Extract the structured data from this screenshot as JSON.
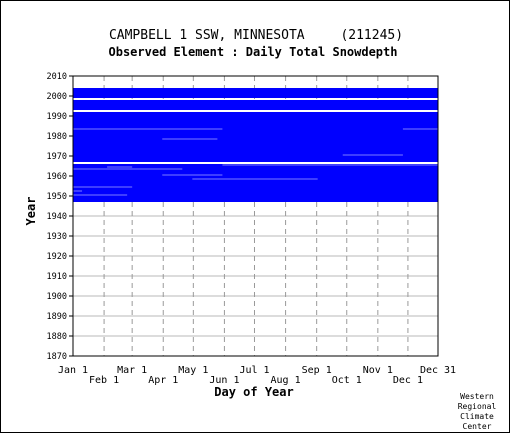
{
  "chart_data": {
    "type": "heatmap",
    "title": "CAMPBELL 1 SSW, MINNESOTA",
    "station_id": "(211245)",
    "subtitle": "Observed Element : Daily Total Snowdepth",
    "xlabel": "Day of Year",
    "ylabel": "Year",
    "x_ticks_upper": [
      "Jan 1",
      "Mar 1",
      "May 1",
      "Jul 1",
      "Sep 1",
      "Nov 1",
      "Dec 31"
    ],
    "x_ticks_lower": [
      "Feb 1",
      "Apr 1",
      "Jun 1",
      "Aug 1",
      "Oct 1",
      "Dec 1"
    ],
    "y_ticks": [
      1870,
      1880,
      1890,
      1900,
      1910,
      1920,
      1930,
      1940,
      1950,
      1960,
      1970,
      1980,
      1990,
      2000,
      2010
    ],
    "x_range_day_of_year": [
      1,
      365
    ],
    "y_range_year": [
      1870,
      2010
    ],
    "grid": true,
    "data_color": "#0000ff",
    "coverage_bands": [
      {
        "years": [
          1947,
          1950
        ],
        "days": [
          1,
          365
        ]
      },
      {
        "years": [
          1951,
          1959
        ],
        "days": [
          1,
          365
        ]
      },
      {
        "years": [
          1960,
          1965
        ],
        "days": [
          1,
          365
        ]
      },
      {
        "years": [
          1967,
          1980
        ],
        "days": [
          1,
          365
        ]
      },
      {
        "years": [
          1981,
          1991
        ],
        "days": [
          1,
          365
        ]
      },
      {
        "years": [
          1993,
          1997
        ],
        "days": [
          1,
          365
        ]
      },
      {
        "years": [
          1999,
          2003
        ],
        "days": [
          1,
          365
        ]
      }
    ],
    "coverage_gaps": [
      {
        "year": 1950,
        "days": [
          1,
          55
        ]
      },
      {
        "year": 1952,
        "days": [
          1,
          10
        ]
      },
      {
        "year": 1954,
        "days": [
          1,
          60
        ]
      },
      {
        "year": 1958,
        "days": [
          120,
          245
        ]
      },
      {
        "year": 1960,
        "days": [
          90,
          150
        ]
      },
      {
        "year": 1963,
        "days": [
          1,
          110
        ]
      },
      {
        "year": 1964,
        "days": [
          35,
          60
        ]
      },
      {
        "year": 1965,
        "days": [
          150,
          365
        ]
      },
      {
        "year": 1970,
        "days": [
          270,
          330
        ]
      },
      {
        "year": 1978,
        "days": [
          90,
          145
        ]
      },
      {
        "year": 1983,
        "days": [
          1,
          150
        ]
      },
      {
        "year": 1983,
        "days": [
          330,
          365
        ]
      }
    ]
  },
  "credit": {
    "line1": "Western",
    "line2": "Regional",
    "line3": "Climate",
    "line4": "Center"
  }
}
